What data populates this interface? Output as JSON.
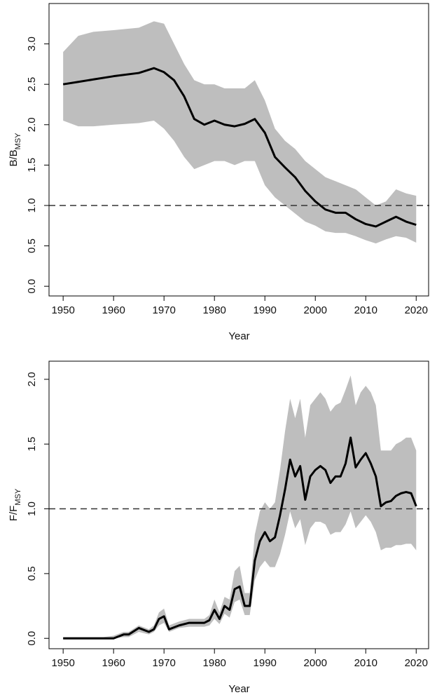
{
  "chart_data": [
    {
      "type": "line",
      "xlabel": "Year",
      "ylabel": "B/B",
      "ylabel_sub": "MSY",
      "x": [
        1950,
        1953,
        1956,
        1960,
        1965,
        1968,
        1970,
        1972,
        1974,
        1976,
        1978,
        1980,
        1982,
        1984,
        1986,
        1988,
        1990,
        1992,
        1994,
        1996,
        1998,
        2000,
        2002,
        2004,
        2006,
        2008,
        2010,
        2012,
        2014,
        2016,
        2018,
        2020
      ],
      "values": [
        2.5,
        2.53,
        2.56,
        2.6,
        2.64,
        2.7,
        2.65,
        2.55,
        2.35,
        2.07,
        2.0,
        2.05,
        2.0,
        1.98,
        2.01,
        2.07,
        1.9,
        1.6,
        1.47,
        1.35,
        1.18,
        1.05,
        0.95,
        0.91,
        0.91,
        0.83,
        0.77,
        0.74,
        0.8,
        0.86,
        0.8,
        0.76
      ],
      "upper": [
        2.9,
        3.1,
        3.15,
        3.17,
        3.2,
        3.28,
        3.25,
        3.0,
        2.75,
        2.55,
        2.5,
        2.5,
        2.45,
        2.45,
        2.45,
        2.55,
        2.3,
        1.95,
        1.8,
        1.7,
        1.55,
        1.45,
        1.35,
        1.3,
        1.25,
        1.2,
        1.1,
        1.0,
        1.05,
        1.2,
        1.15,
        1.12
      ],
      "lower": [
        2.05,
        1.98,
        1.98,
        2.0,
        2.02,
        2.05,
        1.95,
        1.8,
        1.6,
        1.45,
        1.5,
        1.55,
        1.55,
        1.5,
        1.55,
        1.55,
        1.25,
        1.1,
        1.0,
        0.9,
        0.8,
        0.75,
        0.68,
        0.66,
        0.66,
        0.62,
        0.57,
        0.53,
        0.58,
        0.62,
        0.6,
        0.54
      ],
      "color": "#000000",
      "band_color": "#bebebe",
      "hline": 1,
      "xlim": [
        1947.2,
        2022.6
      ],
      "ylim": [
        -0.12,
        3.5
      ],
      "xticks": [
        1950,
        1960,
        1970,
        1980,
        1990,
        2000,
        2010,
        2020
      ],
      "yticks": [
        {
          "value": 0,
          "label": "0.0"
        },
        0.5,
        {
          "value": 1,
          "label": "1.0"
        },
        1.5,
        {
          "value": 2,
          "label": "2.0"
        },
        2.5,
        {
          "value": 3,
          "label": "3.0"
        }
      ]
    },
    {
      "type": "line",
      "xlabel": "Year",
      "ylabel": "F/F",
      "ylabel_sub": "MSY",
      "x": [
        1950,
        1955,
        1958,
        1960,
        1962,
        1963,
        1965,
        1967,
        1968,
        1969,
        1970,
        1971,
        1973,
        1975,
        1978,
        1979,
        1980,
        1981,
        1982,
        1983,
        1984,
        1985,
        1986,
        1987,
        1988,
        1989,
        1990,
        1991,
        1992,
        1993,
        1994,
        1995,
        1996,
        1997,
        1998,
        1999,
        2000,
        2001,
        2002,
        2003,
        2004,
        2005,
        2006,
        2007,
        2008,
        2009,
        2010,
        2011,
        2012,
        2013,
        2014,
        2015,
        2016,
        2017,
        2018,
        2019,
        2020
      ],
      "values": [
        0,
        0,
        0,
        0,
        0.03,
        0.03,
        0.08,
        0.05,
        0.07,
        0.15,
        0.17,
        0.07,
        0.1,
        0.12,
        0.12,
        0.14,
        0.22,
        0.15,
        0.25,
        0.22,
        0.38,
        0.4,
        0.25,
        0.25,
        0.6,
        0.75,
        0.82,
        0.75,
        0.78,
        0.95,
        1.15,
        1.38,
        1.25,
        1.33,
        1.07,
        1.25,
        1.3,
        1.33,
        1.3,
        1.2,
        1.25,
        1.25,
        1.35,
        1.55,
        1.32,
        1.38,
        1.43,
        1.35,
        1.25,
        1.02,
        1.05,
        1.06,
        1.1,
        1.12,
        1.13,
        1.12,
        1.02
      ],
      "upper": [
        0.01,
        0.01,
        0.01,
        0.02,
        0.05,
        0.05,
        0.1,
        0.07,
        0.1,
        0.2,
        0.23,
        0.1,
        0.13,
        0.15,
        0.15,
        0.18,
        0.3,
        0.2,
        0.32,
        0.3,
        0.52,
        0.56,
        0.35,
        0.35,
        0.8,
        0.98,
        1.05,
        1.0,
        1.05,
        1.3,
        1.6,
        1.85,
        1.7,
        1.85,
        1.55,
        1.8,
        1.85,
        1.9,
        1.85,
        1.75,
        1.8,
        1.82,
        1.92,
        2.03,
        1.8,
        1.9,
        1.95,
        1.9,
        1.8,
        1.45,
        1.45,
        1.45,
        1.5,
        1.52,
        1.55,
        1.55,
        1.45
      ],
      "lower": [
        0,
        0,
        0,
        0,
        0.01,
        0.01,
        0.05,
        0.03,
        0.05,
        0.1,
        0.12,
        0.05,
        0.08,
        0.09,
        0.09,
        0.1,
        0.15,
        0.11,
        0.19,
        0.16,
        0.28,
        0.3,
        0.18,
        0.18,
        0.45,
        0.55,
        0.6,
        0.55,
        0.55,
        0.65,
        0.8,
        0.98,
        0.85,
        0.92,
        0.72,
        0.85,
        0.9,
        0.9,
        0.88,
        0.8,
        0.82,
        0.82,
        0.88,
        0.98,
        0.85,
        0.9,
        0.95,
        0.9,
        0.82,
        0.68,
        0.7,
        0.7,
        0.72,
        0.72,
        0.73,
        0.73,
        0.68
      ],
      "color": "#000000",
      "band_color": "#bebebe",
      "hline": 1,
      "xlim": [
        1947.2,
        2022.6
      ],
      "ylim": [
        -0.08,
        2.14
      ],
      "xticks": [
        1950,
        1960,
        1970,
        1980,
        1990,
        2000,
        2010,
        2020
      ],
      "yticks": [
        {
          "value": 0,
          "label": "0.0"
        },
        0.5,
        {
          "value": 1,
          "label": "1.0"
        },
        1.5,
        {
          "value": 2,
          "label": "2.0"
        }
      ]
    }
  ]
}
